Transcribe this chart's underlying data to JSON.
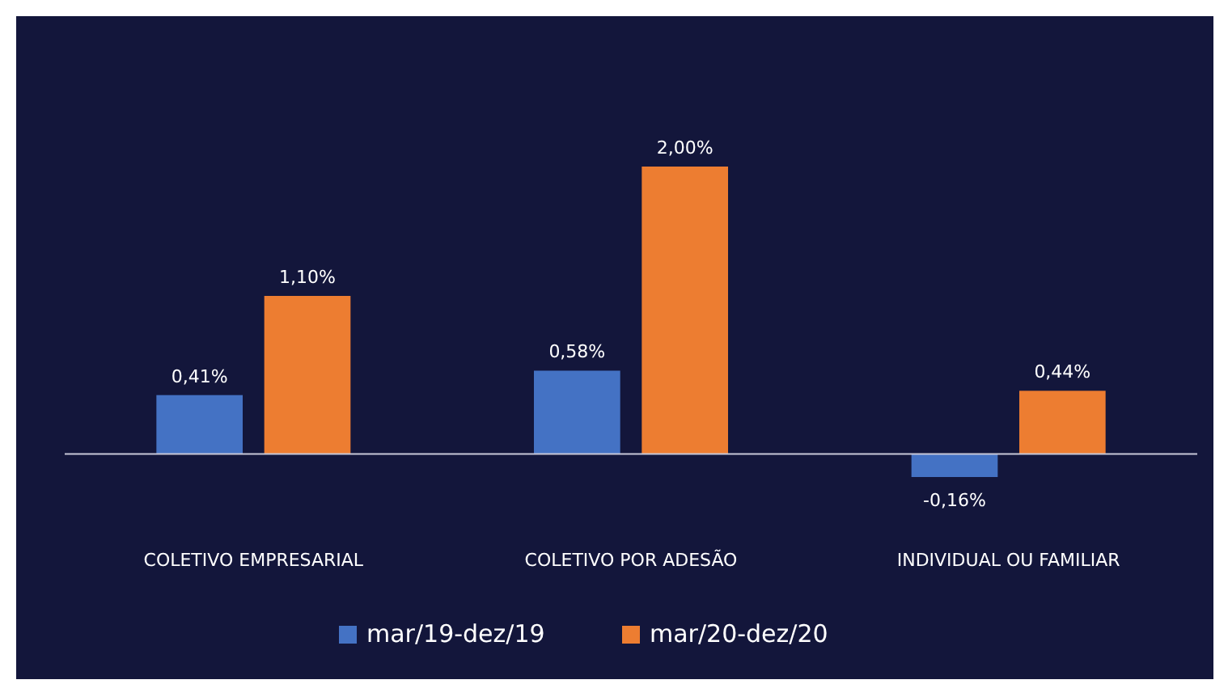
{
  "chart_data": {
    "type": "bar",
    "categories": [
      "COLETIVO EMPRESARIAL",
      "COLETIVO POR ADESÃO",
      "INDIVIDUAL OU FAMILIAR"
    ],
    "series": [
      {
        "name": "mar/19-dez/19",
        "color": "#4472c4",
        "values": [
          0.41,
          0.58,
          -0.16
        ],
        "value_labels": [
          "0,41%",
          "0,58%",
          "-0,16%"
        ]
      },
      {
        "name": "mar/20-dez/20",
        "color": "#ed7d31",
        "values": [
          1.1,
          2.0,
          0.44
        ],
        "value_labels": [
          "1,10%",
          "2,00%",
          "0,44%"
        ]
      }
    ],
    "legend": "bottom",
    "grid": false
  }
}
